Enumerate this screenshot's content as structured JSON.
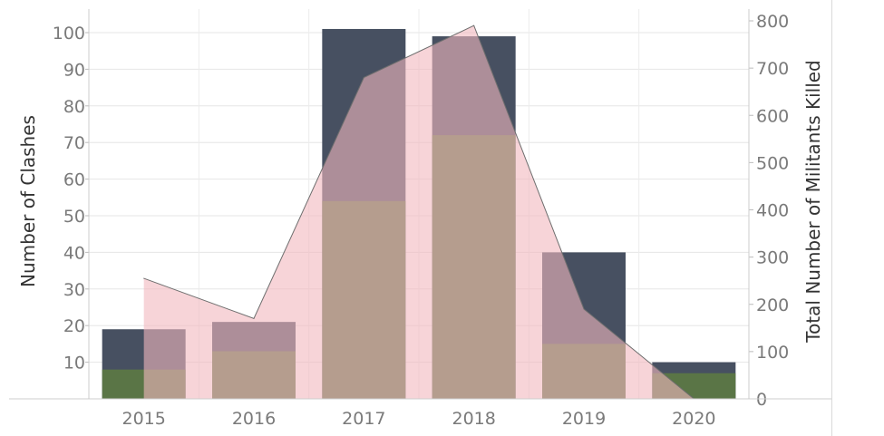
{
  "chart_data": {
    "type": "bar",
    "categories": [
      "2015",
      "2016",
      "2017",
      "2018",
      "2019",
      "2020"
    ],
    "series": [
      {
        "axis": "left",
        "kind": "bar",
        "color": "#475061",
        "values": [
          19,
          21,
          101,
          99,
          40,
          10
        ]
      },
      {
        "axis": "left",
        "kind": "bar",
        "color": "#5a7546",
        "values": [
          8,
          13,
          54,
          72,
          15,
          7
        ]
      },
      {
        "axis": "right",
        "kind": "area",
        "color": "#f2b8be",
        "values": [
          255,
          170,
          680,
          790,
          190,
          0
        ]
      }
    ],
    "ylabel_left": "Number of Clashes",
    "ylabel_right": "Total Number of Militants Killed",
    "ylim_left": [
      0,
      105
    ],
    "ylim_right": [
      0,
      800
    ],
    "yticks_left": [
      10,
      20,
      30,
      40,
      50,
      60,
      70,
      80,
      90,
      100
    ],
    "yticks_right": [
      0,
      100,
      200,
      300,
      400,
      500,
      600,
      700,
      800
    ],
    "grid": true,
    "legend": "none"
  }
}
